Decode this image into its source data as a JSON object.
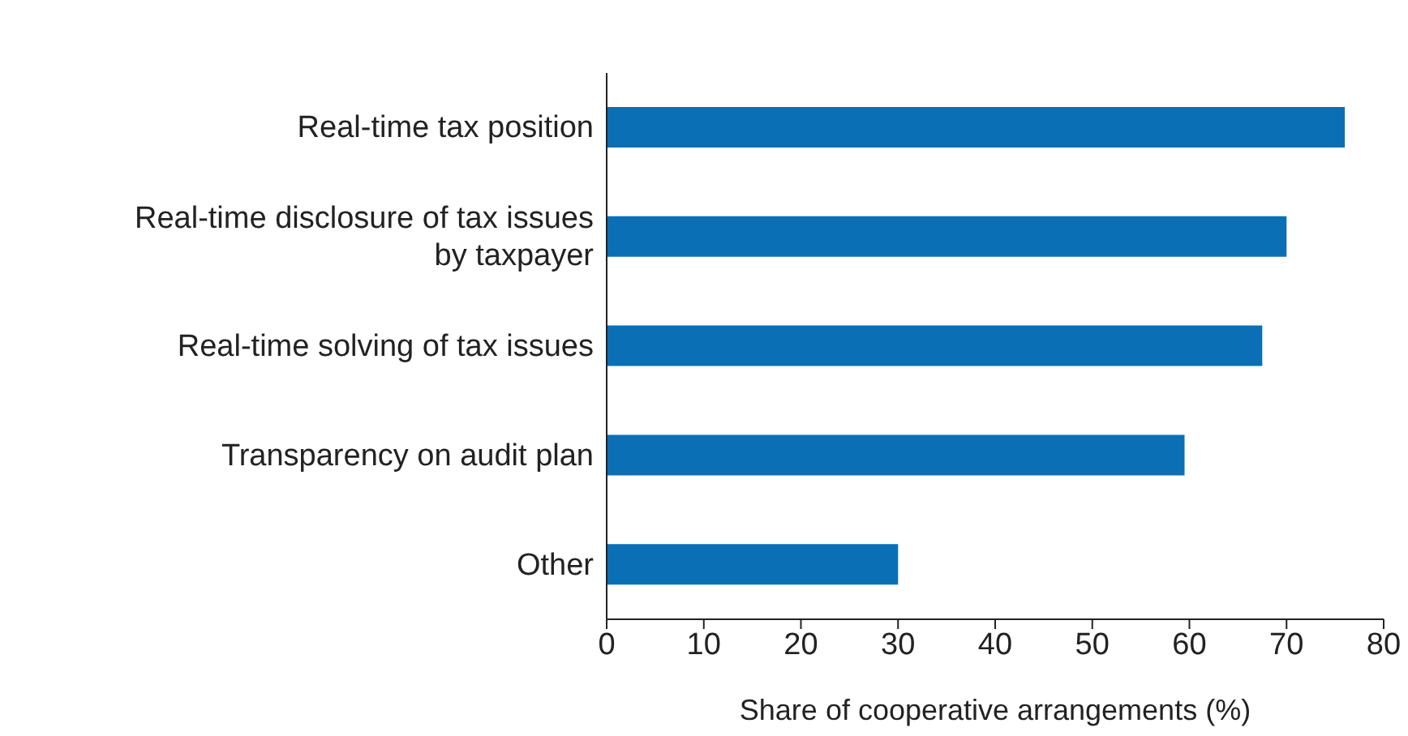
{
  "chart_data": {
    "type": "bar",
    "orientation": "horizontal",
    "xlabel": "Share of cooperative arrangements (%)",
    "categories": [
      "Real-time tax position",
      "Real-time disclosure of tax issues by taxpayer",
      "Real-time solving of tax issues",
      "Transparency on audit plan",
      "Other"
    ],
    "values": [
      76,
      70,
      67.5,
      59.5,
      30
    ],
    "color": "#0a6fb5",
    "xlim": [
      0,
      80
    ],
    "xticks": [
      0,
      10,
      20,
      30,
      40,
      50,
      60,
      70,
      80
    ],
    "grid": false,
    "legend": false
  }
}
